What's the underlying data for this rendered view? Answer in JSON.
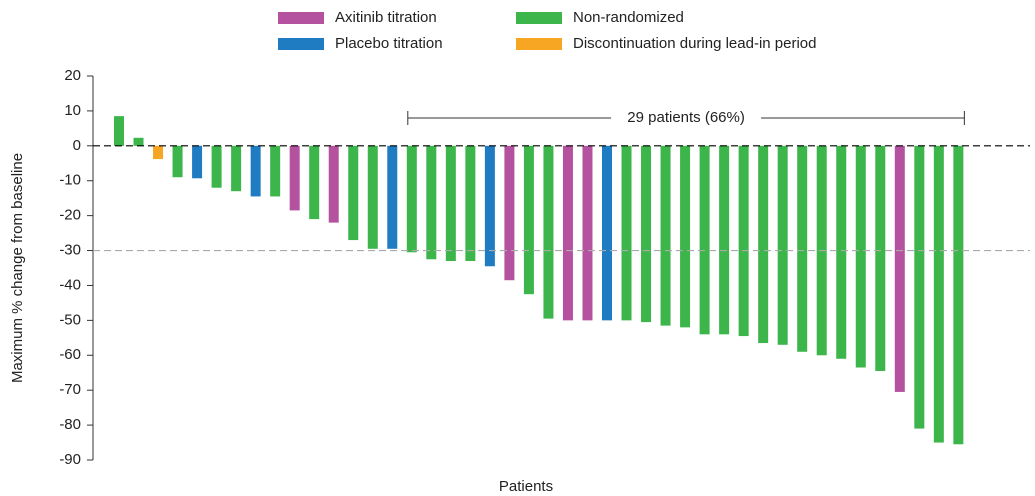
{
  "chart_data": {
    "type": "bar",
    "ylabel": "Maximum % change from baseline",
    "xlabel": "Patients",
    "ylim": [
      -90,
      20
    ],
    "yticks": [
      20,
      10,
      0,
      -10,
      -20,
      -30,
      -40,
      -50,
      -60,
      -70,
      -80,
      -90
    ],
    "legend": [
      {
        "name": "Axitinib titration",
        "color": "#b5529f"
      },
      {
        "name": "Placebo titration",
        "color": "#1f7cc2"
      },
      {
        "name": "Non-randomized",
        "color": "#3cb54a"
      },
      {
        "name": "Discontinuation during lead-in period",
        "color": "#f6a623"
      }
    ],
    "values": [
      8.5,
      2.3,
      -3.8,
      -9,
      -9.3,
      -12,
      -13,
      -14.5,
      -14.5,
      -18.5,
      -21,
      -22,
      -27,
      -29.5,
      -29.5,
      -30.5,
      -32.5,
      -33,
      -33,
      -34.5,
      -38.5,
      -42.5,
      -49.5,
      -50,
      -50,
      -50,
      -50,
      -50.5,
      -51.5,
      -52,
      -54,
      -54,
      -54.5,
      -56.5,
      -57,
      -59,
      -60,
      -61,
      -63.5,
      -64.5,
      -70.5,
      -81,
      -85,
      -85.5
    ],
    "colors": [
      "#3cb54a",
      "#3cb54a",
      "#f6a623",
      "#3cb54a",
      "#1f7cc2",
      "#3cb54a",
      "#3cb54a",
      "#1f7cc2",
      "#3cb54a",
      "#b5529f",
      "#3cb54a",
      "#b5529f",
      "#3cb54a",
      "#3cb54a",
      "#1f7cc2",
      "#3cb54a",
      "#3cb54a",
      "#3cb54a",
      "#3cb54a",
      "#1f7cc2",
      "#b5529f",
      "#3cb54a",
      "#3cb54a",
      "#b5529f",
      "#b5529f",
      "#1f7cc2",
      "#3cb54a",
      "#3cb54a",
      "#3cb54a",
      "#3cb54a",
      "#3cb54a",
      "#3cb54a",
      "#3cb54a",
      "#3cb54a",
      "#3cb54a",
      "#3cb54a",
      "#3cb54a",
      "#3cb54a",
      "#3cb54a",
      "#3cb54a",
      "#b5529f",
      "#3cb54a",
      "#3cb54a",
      "#3cb54a"
    ],
    "reference_lines": [
      {
        "value": 0,
        "color": "#000000"
      },
      {
        "value": -30,
        "color": "#aaaaaa"
      }
    ],
    "annotation": "29 patients (66%)"
  }
}
